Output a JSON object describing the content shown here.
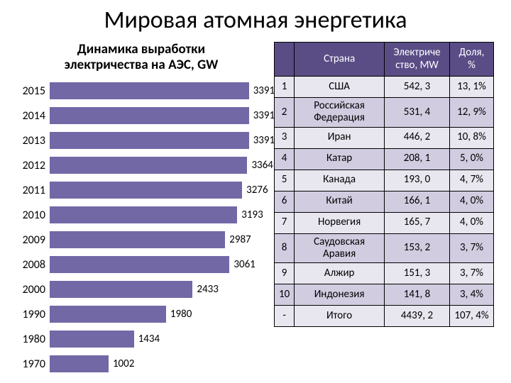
{
  "title": "Мировая атомная энергетика",
  "chart": {
    "title_line1": "Динамика выработки",
    "title_line2": "электричества на АЭС, GW",
    "type": "bar-horizontal",
    "bar_color": "#7268a6",
    "label_color": "#000000",
    "max_value": 3600,
    "categories": [
      "2015",
      "2014",
      "2013",
      "2012",
      "2011",
      "2010",
      "2009",
      "2008",
      "2000",
      "1990",
      "1980",
      "1970"
    ],
    "values": [
      3391,
      3391,
      3391,
      3364,
      3276,
      3193,
      2987,
      3061,
      2433,
      1980,
      1434,
      1002
    ],
    "category_fontsize": 16,
    "value_fontsize": 15
  },
  "table": {
    "header_bg": "#5a4d86",
    "header_color": "#ffffff",
    "row_colors_alt": [
      "#e8e6ef",
      "#d1cce0"
    ],
    "headers": [
      "",
      "Страна",
      "Электриче\nство, MW",
      "Доля,\n%"
    ],
    "col_widths": [
      "28px",
      "auto",
      "92px",
      "62px"
    ],
    "rows": [
      [
        "1",
        "США",
        "542, 3",
        "13, 1%"
      ],
      [
        "2",
        "Российская Федерация",
        "531, 4",
        "12, 9%"
      ],
      [
        "3",
        "Иран",
        "446, 2",
        "10, 8%"
      ],
      [
        "4",
        "Катар",
        "208, 1",
        "5, 0%"
      ],
      [
        "5",
        "Канада",
        "193, 0",
        "4, 7%"
      ],
      [
        "6",
        "Китай",
        "166, 1",
        "4, 0%"
      ],
      [
        "7",
        "Норвегия",
        "165, 7",
        "4, 0%"
      ],
      [
        "8",
        "Саудовская Аравия",
        "153, 2",
        "3, 7%"
      ],
      [
        "9",
        "Алжир",
        "151, 3",
        "3, 7%"
      ],
      [
        "10",
        "Индонезия",
        "141, 8",
        "3, 4%"
      ],
      [
        "-",
        "Итого",
        "4439, 2",
        "107, 4%"
      ]
    ]
  }
}
